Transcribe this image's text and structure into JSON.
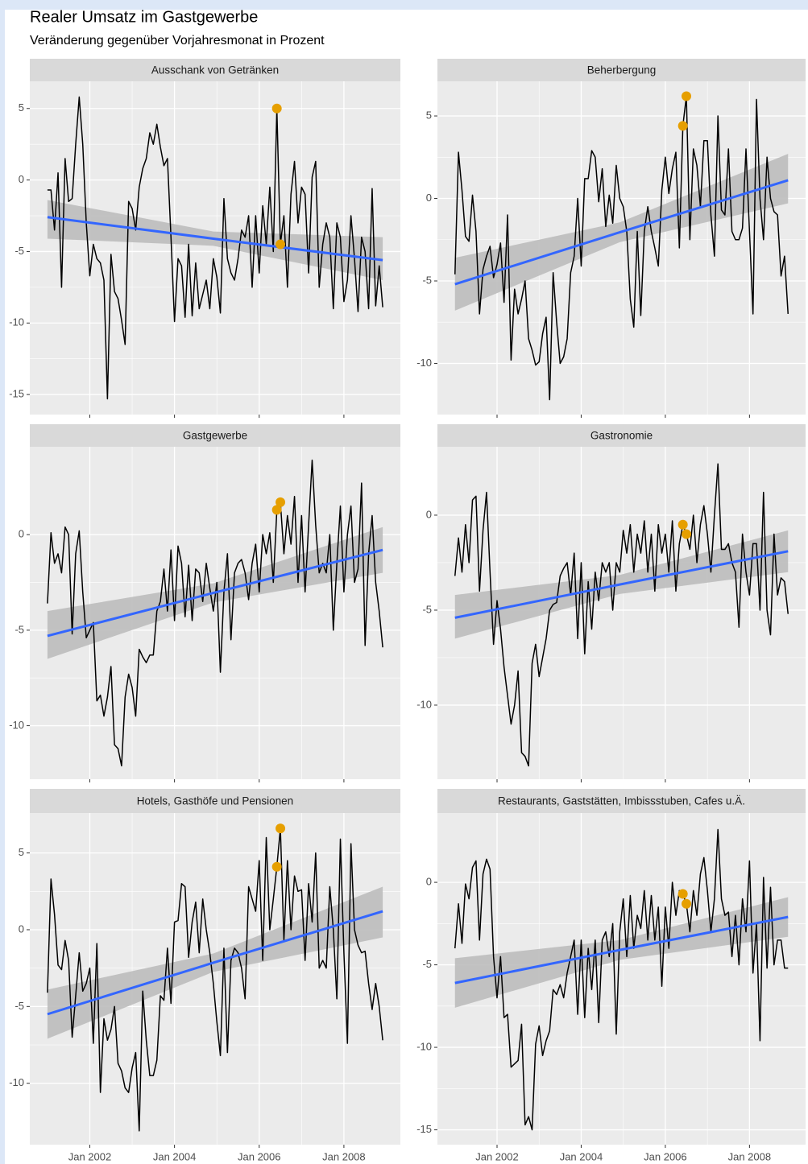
{
  "chart_data": {
    "type": "line",
    "title": "Realer Umsatz im Gastgewerbe",
    "subtitle": "Veränderung gegenüber Vorjahresmonat in Prozent",
    "line_color": "#000000",
    "highlight_color": "#e69f00",
    "trend_color": "#3366ff",
    "band_color": "#bdbdbd",
    "grid": true,
    "x": [
      "2001-01",
      "2001-02",
      "2001-03",
      "2001-04",
      "2001-05",
      "2001-06",
      "2001-07",
      "2001-08",
      "2001-09",
      "2001-10",
      "2001-11",
      "2001-12",
      "2002-01",
      "2002-02",
      "2002-03",
      "2002-04",
      "2002-05",
      "2002-06",
      "2002-07",
      "2002-08",
      "2002-09",
      "2002-10",
      "2002-11",
      "2002-12",
      "2003-01",
      "2003-02",
      "2003-03",
      "2003-04",
      "2003-05",
      "2003-06",
      "2003-07",
      "2003-08",
      "2003-09",
      "2003-10",
      "2003-11",
      "2003-12",
      "2004-01",
      "2004-02",
      "2004-03",
      "2004-04",
      "2004-05",
      "2004-06",
      "2004-07",
      "2004-08",
      "2004-09",
      "2004-10",
      "2004-11",
      "2004-12",
      "2005-01",
      "2005-02",
      "2005-03",
      "2005-04",
      "2005-05",
      "2005-06",
      "2005-07",
      "2005-08",
      "2005-09",
      "2005-10",
      "2005-11",
      "2005-12",
      "2006-01",
      "2006-02",
      "2006-03",
      "2006-04",
      "2006-05",
      "2006-06",
      "2006-07",
      "2006-08",
      "2006-09",
      "2006-10",
      "2006-11",
      "2006-12",
      "2007-01",
      "2007-02",
      "2007-03",
      "2007-04",
      "2007-05",
      "2007-06",
      "2007-07",
      "2007-08",
      "2007-09",
      "2007-10",
      "2007-11",
      "2007-12",
      "2008-01",
      "2008-02",
      "2008-03",
      "2008-04",
      "2008-05",
      "2008-06",
      "2008-07",
      "2008-08",
      "2008-09",
      "2008-10",
      "2008-11",
      "2008-12"
    ],
    "xlim": [
      "2000-08",
      "2009-05"
    ],
    "xticks": [
      {
        "value": "2002-01",
        "label": "Jan 2002"
      },
      {
        "value": "2004-01",
        "label": "Jan 2004"
      },
      {
        "value": "2006-01",
        "label": "Jan 2006"
      },
      {
        "value": "2008-01",
        "label": "Jan 2008"
      }
    ],
    "facets": [
      {
        "title": "Ausschank von Getränken",
        "ylim": [
          -16.4,
          6.9
        ],
        "yticks": [
          5,
          0,
          -5,
          -10,
          -15
        ],
        "values": [
          -0.7,
          -0.7,
          -3.5,
          0.5,
          -7.5,
          1.5,
          -1.5,
          -1.3,
          2.5,
          5.8,
          2.5,
          -3,
          -6.7,
          -4.5,
          -5.5,
          -5.8,
          -7,
          -15.3,
          -5.2,
          -7.8,
          -8.3,
          -9.8,
          -11.5,
          -1.5,
          -2,
          -3.5,
          -0.5,
          0.8,
          1.5,
          3.3,
          2.5,
          3.9,
          2.3,
          1,
          1.5,
          -4,
          -9.9,
          -5.5,
          -6,
          -9.6,
          -4.5,
          -9.5,
          -5.8,
          -9,
          -8,
          -7,
          -9,
          -5.5,
          -6.8,
          -9.3,
          -1.3,
          -5.5,
          -6.5,
          -7,
          -5.5,
          -3.5,
          -4,
          -2.5,
          -7.5,
          -2.5,
          -6.5,
          -1.8,
          -4.5,
          -0.5,
          -5,
          5,
          -4.5,
          -2.5,
          -7.5,
          -1,
          1.3,
          -3,
          -0.5,
          -1,
          -6.5,
          0.2,
          1.3,
          -7.5,
          -4.5,
          -3,
          -4,
          -9,
          -3,
          -4,
          -8.5,
          -7,
          -2.5,
          -5.5,
          -9.2,
          -4,
          -5,
          -9,
          -0.6,
          -8.8,
          -6,
          -8.9
        ],
        "highlight": {
          "x": [
            "2006-06",
            "2006-07"
          ],
          "values": [
            5,
            -4.5
          ]
        },
        "trend": {
          "x": [
            "2001-01",
            "2004-12",
            "2008-12"
          ],
          "values": [
            -2.6,
            -4.1,
            -5.6
          ],
          "lower": [
            -4.1,
            -4.6,
            -7
          ],
          "upper": [
            -1.4,
            -3.6,
            -4
          ]
        }
      },
      {
        "title": "Beherbergung",
        "ylim": [
          -13.1,
          7.1
        ],
        "yticks": [
          5,
          0,
          -5,
          -10
        ],
        "values": [
          -4.6,
          2.8,
          0.5,
          -2.3,
          -2.6,
          0.2,
          -2,
          -7,
          -4.3,
          -3.5,
          -2.9,
          -4.8,
          -4,
          -2.7,
          -6.3,
          -1,
          -9.8,
          -5.5,
          -7,
          -6.1,
          -5,
          -8.5,
          -9.2,
          -10.1,
          -9.9,
          -8.2,
          -7.2,
          -12.2,
          -4.5,
          -7.5,
          -10,
          -9.6,
          -8.5,
          -4.5,
          -3.5,
          0,
          -4.1,
          1.2,
          1.2,
          2.9,
          2.5,
          -0.2,
          1.8,
          -1.7,
          0.2,
          -1.5,
          2,
          0,
          -0.5,
          -2,
          -6.1,
          -7.8,
          -2,
          -7.1,
          -2,
          -0.5,
          -2,
          -3,
          -4.1,
          0.5,
          2.5,
          0.3,
          1.8,
          2.8,
          -3,
          4.4,
          6.2,
          -2.5,
          3,
          2,
          -0.5,
          3.5,
          3.5,
          -1,
          -3.5,
          5,
          -0.7,
          -1,
          3,
          -2,
          -2.5,
          -2.5,
          -1.8,
          3,
          -2,
          -7,
          6,
          0,
          -2.5,
          2.5,
          0,
          -0.8,
          -1,
          -4.7,
          -3.5,
          -7
        ],
        "highlight": {
          "x": [
            "2006-06",
            "2006-07"
          ],
          "values": [
            4.4,
            6.2
          ]
        },
        "trend": {
          "x": [
            "2001-01",
            "2004-12",
            "2008-12"
          ],
          "values": [
            -5.2,
            -2.05,
            1.1
          ],
          "lower": [
            -6.8,
            -2.65,
            -0.3
          ],
          "upper": [
            -3.6,
            -1.45,
            2.7
          ]
        }
      },
      {
        "title": "Gastgewerbe",
        "ylim": [
          -12.8,
          4.6
        ],
        "yticks": [
          0,
          -5,
          -10
        ],
        "values": [
          -3.6,
          0.1,
          -1.5,
          -1,
          -2,
          0.4,
          0,
          -5.2,
          -1,
          0.2,
          -3,
          -5.4,
          -5,
          -4.6,
          -8.7,
          -8.4,
          -9.5,
          -8.5,
          -6.9,
          -11,
          -11.2,
          -12.1,
          -8.5,
          -7.3,
          -8,
          -9.5,
          -6,
          -6.4,
          -6.7,
          -6.3,
          -6.3,
          -4,
          -3.5,
          -1.8,
          -4,
          -0.8,
          -4.5,
          -0.6,
          -1.5,
          -4.3,
          -1.6,
          -4.5,
          -1.8,
          -2,
          -3.5,
          -1.5,
          -2.8,
          -4,
          -2.5,
          -7.2,
          -3,
          -1,
          -5.5,
          -2,
          -1.5,
          -1.3,
          -2,
          -3.4,
          -1.5,
          -0.5,
          -3,
          0,
          -1,
          0.1,
          -2.5,
          1.3,
          1.7,
          -1,
          1,
          -0.5,
          2,
          -2.5,
          1,
          -3,
          0.5,
          3.9,
          0.5,
          -2,
          -1.5,
          -2,
          0,
          -5,
          -1.5,
          1.5,
          -3,
          0,
          1.5,
          -2.5,
          -1.8,
          2.7,
          -5.8,
          -1,
          1,
          -2.5,
          -4,
          -5.9
        ],
        "highlight": {
          "x": [
            "2006-06",
            "2006-07"
          ],
          "values": [
            1.3,
            1.7
          ]
        },
        "trend": {
          "x": [
            "2001-01",
            "2004-12",
            "2008-12"
          ],
          "values": [
            -5.3,
            -3.05,
            -0.8
          ],
          "lower": [
            -6.5,
            -3.55,
            -2
          ],
          "upper": [
            -4,
            -2.55,
            0.4
          ]
        }
      },
      {
        "title": "Gastronomie",
        "ylim": [
          -13.9,
          3.6
        ],
        "yticks": [
          0,
          -5,
          -10
        ],
        "values": [
          -3.2,
          -1.2,
          -3,
          -0.5,
          -2.5,
          0.8,
          1,
          -4,
          -0.8,
          1.2,
          -3,
          -6.8,
          -4.5,
          -6,
          -8,
          -9.5,
          -11,
          -10,
          -8.2,
          -12.5,
          -12.7,
          -13.2,
          -7.8,
          -6.8,
          -8.5,
          -7.5,
          -6.5,
          -5,
          -4.7,
          -4.6,
          -3.2,
          -2.8,
          -2.5,
          -4.2,
          -2,
          -6.5,
          -2.5,
          -7.3,
          -3.5,
          -6,
          -3,
          -4.5,
          -2.5,
          -3,
          -2.5,
          -5,
          -2.5,
          -3,
          -0.8,
          -2,
          -0.5,
          -3,
          -1,
          -2,
          -0.3,
          -3,
          -1,
          -4,
          -0.5,
          -2,
          -1,
          -3,
          -0.3,
          -4,
          -1.5,
          -0.5,
          -1,
          -1.8,
          0,
          -2.5,
          -0.5,
          0.5,
          -1,
          -3,
          0,
          2.7,
          -1.8,
          -1.8,
          -1.5,
          -2.5,
          -3,
          -5.9,
          -1,
          -3,
          -4.2,
          -1.5,
          -1.5,
          -5,
          1.2,
          -5,
          -6.3,
          -1,
          -4.2,
          -3.3,
          -3.5,
          -5.2
        ],
        "highlight": {
          "x": [
            "2006-06",
            "2006-07"
          ],
          "values": [
            -0.5,
            -1
          ]
        },
        "trend": {
          "x": [
            "2001-01",
            "2004-12",
            "2008-12"
          ],
          "values": [
            -5.4,
            -3.65,
            -1.9
          ],
          "lower": [
            -6.5,
            -4.15,
            -3
          ],
          "upper": [
            -4.2,
            -3.15,
            -0.8
          ]
        }
      },
      {
        "title": "Hotels, Gasthöfe und Pensionen",
        "ylim": [
          -14,
          7.6
        ],
        "yticks": [
          5,
          0,
          -5,
          -10
        ],
        "values": [
          -4.1,
          3.3,
          1,
          -2.3,
          -2.6,
          -0.7,
          -2,
          -7,
          -4.3,
          -1.5,
          -4,
          -3.5,
          -2.5,
          -7.4,
          -0.9,
          -10.6,
          -5.8,
          -7.2,
          -6.5,
          -5,
          -8.7,
          -9.2,
          -10.3,
          -10.6,
          -9,
          -8,
          -13.1,
          -4,
          -7.2,
          -9.5,
          -9.5,
          -8.5,
          -4.3,
          -4.6,
          -1.2,
          -4.8,
          0.5,
          0.6,
          3,
          2.8,
          -1.8,
          0.5,
          1.8,
          -1.5,
          2,
          0,
          -1.5,
          -3.5,
          -6,
          -8.2,
          -1.2,
          -8,
          -2,
          -1.2,
          -1.5,
          -2.5,
          -4.5,
          2.8,
          2,
          1.2,
          4.5,
          -2,
          6,
          0,
          2,
          4.1,
          6.6,
          -0.7,
          4.5,
          0,
          3.5,
          2.5,
          2.6,
          -2,
          3,
          0.5,
          5,
          -2.5,
          -2,
          -2.5,
          2.8,
          0,
          -4.5,
          5.9,
          -1.5,
          -7.4,
          5.6,
          0,
          -1,
          -1.5,
          -1.4,
          -3.5,
          -5.2,
          -3.5,
          -5,
          -7.2
        ],
        "highlight": {
          "x": [
            "2006-06",
            "2006-07"
          ],
          "values": [
            4.1,
            6.6
          ]
        },
        "trend": {
          "x": [
            "2001-01",
            "2004-12",
            "2008-12"
          ],
          "values": [
            -5.5,
            -2.15,
            1.2
          ],
          "lower": [
            -7.1,
            -2.75,
            -0.5
          ],
          "upper": [
            -3.9,
            -1.55,
            2.8
          ]
        }
      },
      {
        "title": "Restaurants, Gaststätten, Imbissstuben, Cafes u.Ä.",
        "ylim": [
          -15.9,
          4.2
        ],
        "yticks": [
          0,
          -5,
          -10,
          -15
        ],
        "values": [
          -4,
          -1.3,
          -3.7,
          -0.1,
          -1,
          0.9,
          1.3,
          -3.5,
          0.5,
          1.4,
          0.8,
          -4.5,
          -7,
          -4.5,
          -8.2,
          -8,
          -11.2,
          -11,
          -10.8,
          -8.6,
          -14.7,
          -14.2,
          -15,
          -9.8,
          -8.7,
          -10.5,
          -9.6,
          -9,
          -6.5,
          -6.8,
          -6.2,
          -7,
          -5.5,
          -4.5,
          -3.5,
          -8,
          -3.5,
          -8.2,
          -4,
          -6.5,
          -3.5,
          -8.5,
          -3.5,
          -3,
          -4.5,
          -2.5,
          -9.2,
          -3,
          -1,
          -4.5,
          -0.8,
          -4,
          -2,
          -2.8,
          -0.5,
          -3.5,
          -0.8,
          -3.5,
          -1.5,
          -6.3,
          -1.5,
          -4,
          0,
          -2,
          -0.5,
          -0.7,
          -1.3,
          -3,
          -0.5,
          -2,
          0.5,
          1.5,
          -0.5,
          -3,
          -1,
          3.2,
          -1,
          -2,
          -1.8,
          -4.5,
          -2,
          -5,
          -1,
          -3,
          1.3,
          -5.5,
          -2.5,
          -9.6,
          0.3,
          -5.2,
          -0.3,
          -5,
          -3.5,
          -3.5,
          -5.2,
          -5.2
        ],
        "highlight": {
          "x": [
            "2006-06",
            "2006-07"
          ],
          "values": [
            -0.7,
            -1.3
          ]
        },
        "trend": {
          "x": [
            "2001-01",
            "2004-12",
            "2008-12"
          ],
          "values": [
            -6.1,
            -4.1,
            -2.1
          ],
          "lower": [
            -7.6,
            -4.7,
            -3.3
          ],
          "upper": [
            -4.6,
            -3.5,
            -0.9
          ]
        }
      }
    ]
  }
}
